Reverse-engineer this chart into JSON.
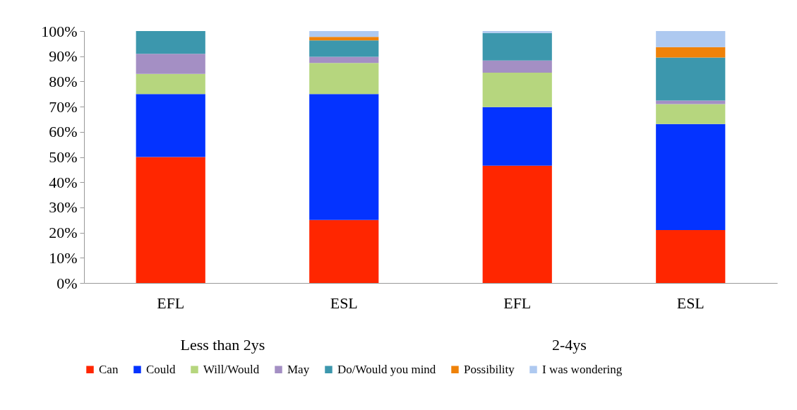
{
  "chart_data": {
    "type": "bar",
    "stacked": true,
    "categories": [
      "EFL",
      "ESL",
      "EFL",
      "ESL"
    ],
    "annotations": [
      "Less than 2ys",
      "2-4ys"
    ],
    "series": [
      {
        "name": "Can",
        "color": "#ff2600",
        "values": [
          50,
          25,
          46.6,
          21
        ]
      },
      {
        "name": "Could",
        "color": "#0433ff",
        "values": [
          25,
          50,
          23.2,
          42.1
        ]
      },
      {
        "name": "Will/Would",
        "color": "#b6d67e",
        "values": [
          8,
          12.3,
          13.7,
          7.9
        ]
      },
      {
        "name": "May",
        "color": "#a48fc4",
        "values": [
          8,
          2.5,
          4.8,
          1.4
        ]
      },
      {
        "name": "Do/Would you mind",
        "color": "#3c97ad",
        "values": [
          9,
          6.5,
          10.9,
          17.1
        ]
      },
      {
        "name": "Possibility",
        "color": "#ef8209",
        "values": [
          0,
          1.4,
          0,
          4.1
        ]
      },
      {
        "name": "I was wondering",
        "color": "#aec9f0",
        "values": [
          0,
          2.3,
          0.8,
          6.4
        ]
      }
    ],
    "ylim": [
      0,
      100
    ],
    "yticks": [
      {
        "value": 0,
        "label": "0%"
      },
      {
        "value": 10,
        "label": "10%"
      },
      {
        "value": 20,
        "label": "20%"
      },
      {
        "value": 30,
        "label": "30%"
      },
      {
        "value": 40,
        "label": "40%"
      },
      {
        "value": 50,
        "label": "50%"
      },
      {
        "value": 60,
        "label": "60%"
      },
      {
        "value": 70,
        "label": "70%"
      },
      {
        "value": 80,
        "label": "80%"
      },
      {
        "value": 90,
        "label": "90%"
      },
      {
        "value": 100,
        "label": "100%"
      }
    ],
    "grid": false,
    "legend": "bottom"
  }
}
